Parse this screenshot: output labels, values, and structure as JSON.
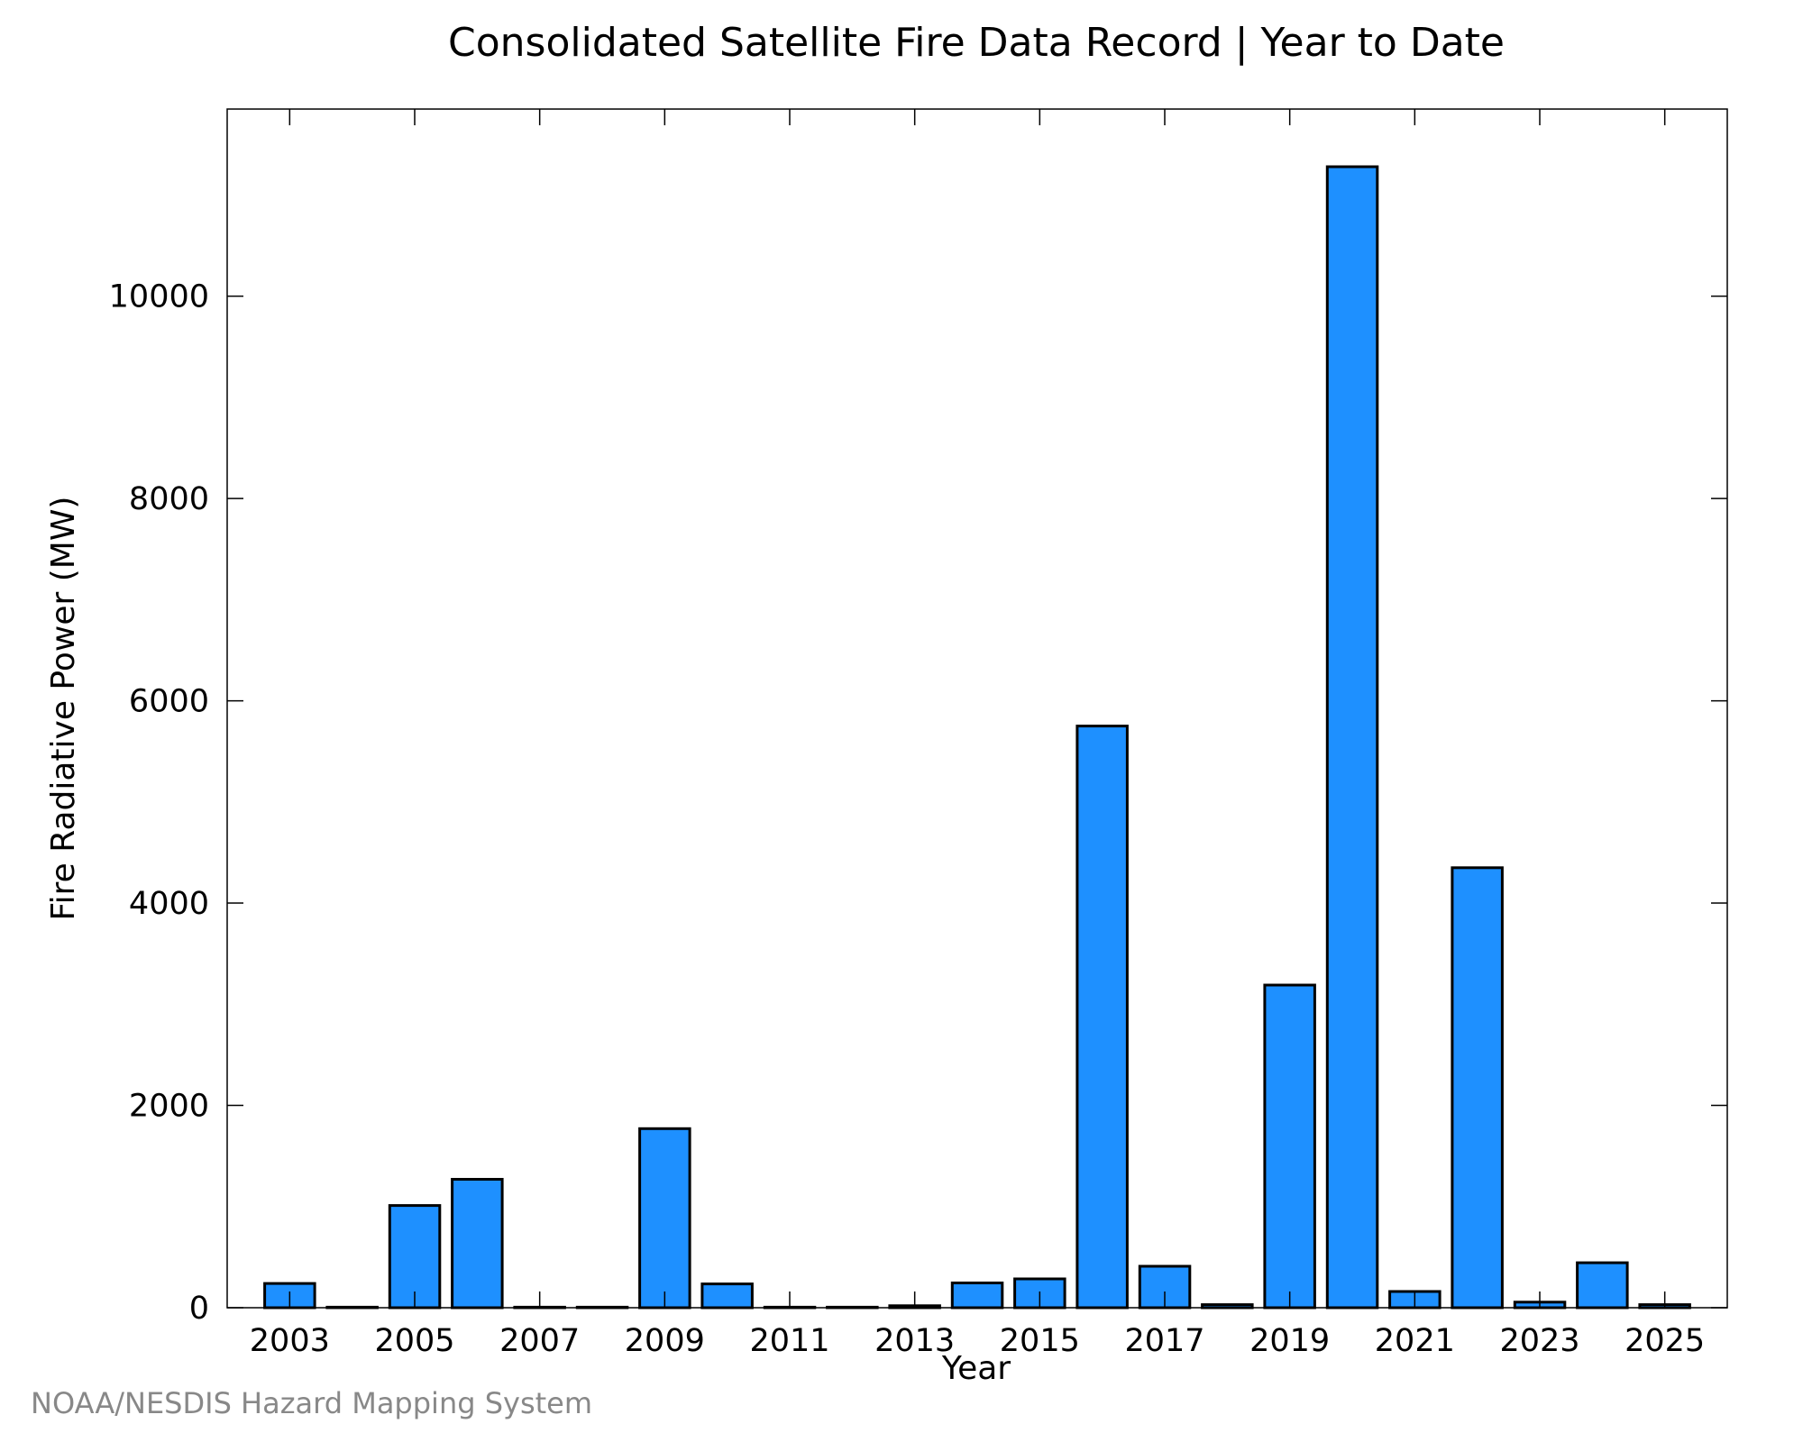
{
  "footer": "NOAA/NESDIS Hazard Mapping System",
  "colors": {
    "bar_fill": "#1E90FF",
    "bar_stroke": "#000000",
    "axis": "#000000",
    "footer": "#888888"
  },
  "chart_data": {
    "type": "bar",
    "title": "Consolidated Satellite Fire Data Record | Year to Date",
    "xlabel": "Year",
    "ylabel": "Fire Radiative Power (MW)",
    "categories": [
      "2003",
      "2004",
      "2005",
      "2006",
      "2007",
      "2008",
      "2009",
      "2010",
      "2011",
      "2012",
      "2013",
      "2014",
      "2015",
      "2016",
      "2017",
      "2018",
      "2019",
      "2020",
      "2021",
      "2022",
      "2023",
      "2024",
      "2025"
    ],
    "values": [
      240,
      5,
      1010,
      1270,
      5,
      5,
      1770,
      235,
      5,
      5,
      20,
      245,
      285,
      5750,
      410,
      30,
      3190,
      11280,
      160,
      4350,
      55,
      445,
      30
    ],
    "x_tick_labels": [
      "2003",
      "2005",
      "2007",
      "2009",
      "2011",
      "2013",
      "2015",
      "2017",
      "2019",
      "2021",
      "2023",
      "2025"
    ],
    "y_ticks": [
      0,
      2000,
      4000,
      6000,
      8000,
      10000
    ],
    "ylim": [
      0,
      11850
    ],
    "xlim": [
      2002.0,
      2026.0
    ],
    "grid": false,
    "legend": "none"
  }
}
